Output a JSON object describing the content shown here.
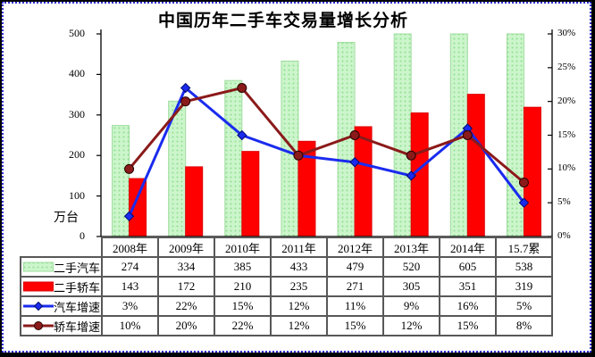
{
  "window": {
    "background": "#ffffff",
    "frame_color": "#000000",
    "marquee_color": "#2f2fd0"
  },
  "title": "中国历年二手车交易量增长分析",
  "chart_data": {
    "type": "combo",
    "title": "中国历年二手车交易量增长分析",
    "categories": [
      "2008年",
      "2009年",
      "2010年",
      "2011年",
      "2012年",
      "2013年",
      "2014年",
      "15.7累"
    ],
    "series": [
      {
        "name": "二手汽车",
        "type": "bar",
        "axis": "left",
        "color": "#ccf5cc",
        "dot_color": "#8fdf8f",
        "edge_color": "#9fdc9f",
        "values": [
          274,
          334,
          385,
          433,
          479,
          520,
          605,
          538
        ]
      },
      {
        "name": "二手轿车",
        "type": "bar",
        "axis": "left",
        "color": "#ff0000",
        "edge_color": "#dd0000",
        "values": [
          143,
          172,
          210,
          235,
          271,
          305,
          351,
          319
        ]
      },
      {
        "name": "汽车增速",
        "type": "line",
        "axis": "right",
        "marker": "diamond",
        "color": "#1a2bee",
        "marker_edge": "#000a70",
        "values": [
          3,
          22,
          15,
          12,
          11,
          9,
          16,
          5
        ]
      },
      {
        "name": "轿车增速",
        "type": "line",
        "axis": "right",
        "marker": "circle",
        "color": "#8b1a1a",
        "marker_edge": "#2a0000",
        "values": [
          10,
          20,
          22,
          12,
          15,
          12,
          15,
          8
        ]
      }
    ],
    "left_axis": {
      "unit_label": "万台",
      "max": 500,
      "tick_values": [
        0,
        100,
        200,
        300,
        400,
        500
      ],
      "tick_labels": [
        "0",
        "100",
        "200",
        "300",
        "400",
        "500"
      ]
    },
    "right_axis": {
      "max": 30,
      "tick_values": [
        0,
        5,
        10,
        15,
        20,
        25,
        30
      ],
      "tick_labels": [
        "0%",
        "5%",
        "10%",
        "15%",
        "20%",
        "25%",
        "30%"
      ]
    },
    "grid": false,
    "legend_position": "table-left",
    "bars_clipped_at_max": true
  },
  "table": {
    "rows": [
      {
        "label": "二手汽车",
        "values": [
          "274",
          "334",
          "385",
          "433",
          "479",
          "520",
          "605",
          "538"
        ]
      },
      {
        "label": "二手轿车",
        "values": [
          "143",
          "172",
          "210",
          "235",
          "271",
          "305",
          "351",
          "319"
        ]
      },
      {
        "label": "汽车增速",
        "values": [
          "3%",
          "22%",
          "15%",
          "12%",
          "11%",
          "9%",
          "16%",
          "5%"
        ]
      },
      {
        "label": "轿车增速",
        "values": [
          "10%",
          "20%",
          "22%",
          "12%",
          "15%",
          "12%",
          "15%",
          "8%"
        ]
      }
    ]
  }
}
